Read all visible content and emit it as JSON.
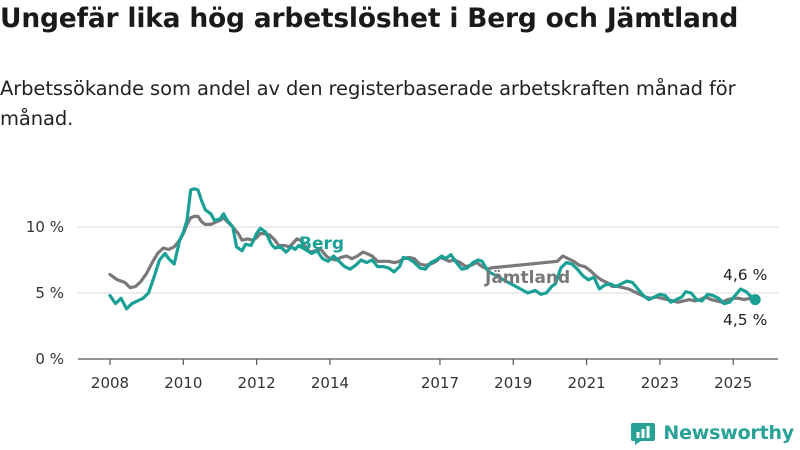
{
  "title": "Ungefär lika hög arbetslöshet i Berg och Jämtland",
  "subtitle": "Arbetssökande som andel av den registerbaserade arbetskraften månad för månad.",
  "brand": {
    "name": "Newsworthy",
    "logo_icon": "bar-chart-logo-icon"
  },
  "colors": {
    "berg": "#1aa094",
    "jamtland": "#7a787a",
    "grid": "#d9d9d9",
    "axis": "#555555"
  },
  "chart_data": {
    "type": "line",
    "title": "Ungefär lika hög arbetslöshet i Berg och Jämtland",
    "subtitle": "Arbetssökande som andel av den registerbaserade arbetskraften månad för månad.",
    "y_unit": "%",
    "ylim": [
      0,
      13.5
    ],
    "y_ticks": [
      {
        "value": 0,
        "label": "0 %"
      },
      {
        "value": 5,
        "label": "5 %"
      },
      {
        "value": 10,
        "label": "10 %"
      }
    ],
    "xlim": [
      2007.5,
      2026
    ],
    "x_ticks": [
      {
        "value": 2008,
        "label": "2008"
      },
      {
        "value": 2010,
        "label": "2010"
      },
      {
        "value": 2012,
        "label": "2012"
      },
      {
        "value": 2014,
        "label": "2014"
      },
      {
        "value": 2017,
        "label": "2017"
      },
      {
        "value": 2019,
        "label": "2019"
      },
      {
        "value": 2021,
        "label": "2021"
      },
      {
        "value": 2023,
        "label": "2023"
      },
      {
        "value": 2025,
        "label": "2025"
      }
    ],
    "grid": true,
    "legend": "inline",
    "series": [
      {
        "name": "Jämtland",
        "label": "Jämtland",
        "end_label": "4,6 %",
        "points": [
          [
            2008.0,
            6.4
          ],
          [
            2008.2,
            6.0
          ],
          [
            2008.4,
            5.8
          ],
          [
            2008.55,
            5.4
          ],
          [
            2008.7,
            5.5
          ],
          [
            2008.85,
            5.9
          ],
          [
            2009.0,
            6.5
          ],
          [
            2009.15,
            7.3
          ],
          [
            2009.3,
            8.0
          ],
          [
            2009.45,
            8.4
          ],
          [
            2009.6,
            8.3
          ],
          [
            2009.75,
            8.5
          ],
          [
            2009.9,
            9.0
          ],
          [
            2010.0,
            9.5
          ],
          [
            2010.1,
            10.2
          ],
          [
            2010.2,
            10.7
          ],
          [
            2010.3,
            10.8
          ],
          [
            2010.4,
            10.8
          ],
          [
            2010.5,
            10.4
          ],
          [
            2010.6,
            10.2
          ],
          [
            2010.75,
            10.2
          ],
          [
            2010.9,
            10.4
          ],
          [
            2011.0,
            10.5
          ],
          [
            2011.1,
            10.7
          ],
          [
            2011.2,
            10.4
          ],
          [
            2011.35,
            10.0
          ],
          [
            2011.5,
            9.5
          ],
          [
            2011.6,
            9.0
          ],
          [
            2011.75,
            9.1
          ],
          [
            2011.9,
            9.0
          ],
          [
            2012.0,
            9.2
          ],
          [
            2012.1,
            9.5
          ],
          [
            2012.2,
            9.5
          ],
          [
            2012.35,
            9.4
          ],
          [
            2012.5,
            9.0
          ],
          [
            2012.6,
            8.6
          ],
          [
            2012.75,
            8.6
          ],
          [
            2012.9,
            8.5
          ],
          [
            2013.0,
            8.8
          ],
          [
            2013.1,
            9.1
          ],
          [
            2013.2,
            9.0
          ],
          [
            2013.45,
            8.1
          ],
          [
            2013.6,
            8.2
          ],
          [
            2013.75,
            8.3
          ],
          [
            2013.9,
            7.8
          ],
          [
            2014.0,
            7.6
          ],
          [
            2014.15,
            7.5
          ],
          [
            2014.3,
            7.7
          ],
          [
            2014.45,
            7.8
          ],
          [
            2014.6,
            7.6
          ],
          [
            2014.75,
            7.8
          ],
          [
            2014.9,
            8.1
          ],
          [
            2015.0,
            8.0
          ],
          [
            2015.15,
            7.8
          ],
          [
            2015.3,
            7.4
          ],
          [
            2015.45,
            7.4
          ],
          [
            2015.6,
            7.4
          ],
          [
            2015.75,
            7.3
          ],
          [
            2015.9,
            7.4
          ],
          [
            2016.0,
            7.6
          ],
          [
            2016.15,
            7.7
          ],
          [
            2016.3,
            7.6
          ],
          [
            2016.45,
            7.2
          ],
          [
            2016.6,
            7.1
          ],
          [
            2016.75,
            7.2
          ],
          [
            2016.9,
            7.4
          ],
          [
            2017.0,
            7.7
          ],
          [
            2017.1,
            7.6
          ],
          [
            2017.25,
            7.4
          ],
          [
            2017.4,
            7.5
          ],
          [
            2017.55,
            7.3
          ],
          [
            2017.7,
            7.0
          ],
          [
            2017.85,
            7.1
          ],
          [
            2018.0,
            7.3
          ],
          [
            2018.15,
            7.0
          ],
          [
            2018.3,
            6.8
          ],
          [
            2018.4,
            6.9
          ],
          [
            2020.2,
            7.4
          ],
          [
            2020.35,
            7.8
          ],
          [
            2020.5,
            7.6
          ],
          [
            2020.65,
            7.4
          ],
          [
            2020.8,
            7.1
          ],
          [
            2020.95,
            7.0
          ],
          [
            2021.1,
            6.7
          ],
          [
            2021.25,
            6.3
          ],
          [
            2021.4,
            6.0
          ],
          [
            2021.55,
            5.8
          ],
          [
            2021.7,
            5.5
          ],
          [
            2021.85,
            5.5
          ],
          [
            2022.0,
            5.4
          ],
          [
            2022.15,
            5.3
          ],
          [
            2022.3,
            5.1
          ],
          [
            2022.45,
            4.9
          ],
          [
            2022.6,
            4.7
          ],
          [
            2022.75,
            4.6
          ],
          [
            2022.9,
            4.7
          ],
          [
            2023.05,
            4.6
          ],
          [
            2023.2,
            4.5
          ],
          [
            2023.35,
            4.4
          ],
          [
            2023.5,
            4.3
          ],
          [
            2023.65,
            4.4
          ],
          [
            2023.8,
            4.5
          ],
          [
            2023.95,
            4.4
          ],
          [
            2024.1,
            4.5
          ],
          [
            2024.25,
            4.7
          ],
          [
            2024.4,
            4.5
          ],
          [
            2024.55,
            4.4
          ],
          [
            2024.7,
            4.3
          ],
          [
            2024.85,
            4.5
          ],
          [
            2025.0,
            4.6
          ],
          [
            2025.15,
            4.6
          ],
          [
            2025.3,
            4.5
          ],
          [
            2025.45,
            4.6
          ],
          [
            2025.55,
            4.6
          ]
        ]
      },
      {
        "name": "Berg",
        "label": "Berg",
        "end_label": "4,5 %",
        "points": [
          [
            2008.0,
            4.8
          ],
          [
            2008.15,
            4.2
          ],
          [
            2008.3,
            4.6
          ],
          [
            2008.45,
            3.8
          ],
          [
            2008.6,
            4.2
          ],
          [
            2008.75,
            4.4
          ],
          [
            2008.9,
            4.6
          ],
          [
            2009.05,
            5.0
          ],
          [
            2009.2,
            6.2
          ],
          [
            2009.35,
            7.5
          ],
          [
            2009.5,
            8.0
          ],
          [
            2009.6,
            7.6
          ],
          [
            2009.75,
            7.2
          ],
          [
            2009.9,
            9.0
          ],
          [
            2010.0,
            9.6
          ],
          [
            2010.1,
            10.5
          ],
          [
            2010.2,
            12.8
          ],
          [
            2010.3,
            12.9
          ],
          [
            2010.4,
            12.8
          ],
          [
            2010.5,
            12.0
          ],
          [
            2010.6,
            11.3
          ],
          [
            2010.75,
            11.0
          ],
          [
            2010.85,
            10.5
          ],
          [
            2011.0,
            10.6
          ],
          [
            2011.1,
            11.0
          ],
          [
            2011.2,
            10.5
          ],
          [
            2011.35,
            10.0
          ],
          [
            2011.45,
            8.5
          ],
          [
            2011.6,
            8.2
          ],
          [
            2011.7,
            8.7
          ],
          [
            2011.85,
            8.6
          ],
          [
            2012.0,
            9.5
          ],
          [
            2012.1,
            9.9
          ],
          [
            2012.25,
            9.6
          ],
          [
            2012.4,
            8.7
          ],
          [
            2012.5,
            8.4
          ],
          [
            2012.65,
            8.5
          ],
          [
            2012.8,
            8.1
          ],
          [
            2012.95,
            8.5
          ],
          [
            2013.05,
            8.3
          ],
          [
            2013.15,
            8.6
          ],
          [
            2013.5,
            8.0
          ],
          [
            2013.65,
            8.2
          ],
          [
            2013.8,
            7.6
          ],
          [
            2013.95,
            7.4
          ],
          [
            2014.1,
            7.8
          ],
          [
            2014.25,
            7.4
          ],
          [
            2014.4,
            7.0
          ],
          [
            2014.55,
            6.8
          ],
          [
            2014.7,
            7.1
          ],
          [
            2014.85,
            7.5
          ],
          [
            2015.0,
            7.3
          ],
          [
            2015.15,
            7.5
          ],
          [
            2015.3,
            7.0
          ],
          [
            2015.45,
            7.0
          ],
          [
            2015.6,
            6.9
          ],
          [
            2015.75,
            6.6
          ],
          [
            2015.9,
            7.0
          ],
          [
            2016.0,
            7.7
          ],
          [
            2016.15,
            7.6
          ],
          [
            2016.3,
            7.3
          ],
          [
            2016.45,
            6.9
          ],
          [
            2016.6,
            6.8
          ],
          [
            2016.75,
            7.3
          ],
          [
            2016.9,
            7.5
          ],
          [
            2017.05,
            7.8
          ],
          [
            2017.15,
            7.6
          ],
          [
            2017.3,
            7.9
          ],
          [
            2017.45,
            7.3
          ],
          [
            2017.6,
            6.8
          ],
          [
            2017.75,
            6.9
          ],
          [
            2017.9,
            7.3
          ],
          [
            2018.05,
            7.5
          ],
          [
            2018.15,
            7.4
          ],
          [
            2018.3,
            6.7
          ],
          [
            2018.4,
            6.5
          ],
          [
            2019.4,
            5.0
          ],
          [
            2019.6,
            5.2
          ],
          [
            2019.75,
            4.9
          ],
          [
            2019.9,
            5.0
          ],
          [
            2020.05,
            5.5
          ],
          [
            2020.15,
            5.7
          ],
          [
            2020.3,
            6.9
          ],
          [
            2020.45,
            7.3
          ],
          [
            2020.6,
            7.2
          ],
          [
            2020.75,
            6.8
          ],
          [
            2020.9,
            6.3
          ],
          [
            2021.05,
            6.0
          ],
          [
            2021.2,
            6.2
          ],
          [
            2021.35,
            5.3
          ],
          [
            2021.5,
            5.6
          ],
          [
            2021.65,
            5.7
          ],
          [
            2021.8,
            5.5
          ],
          [
            2021.95,
            5.7
          ],
          [
            2022.1,
            5.9
          ],
          [
            2022.25,
            5.8
          ],
          [
            2022.4,
            5.3
          ],
          [
            2022.55,
            4.8
          ],
          [
            2022.7,
            4.5
          ],
          [
            2022.85,
            4.7
          ],
          [
            2023.0,
            4.9
          ],
          [
            2023.15,
            4.8
          ],
          [
            2023.3,
            4.3
          ],
          [
            2023.45,
            4.5
          ],
          [
            2023.6,
            4.7
          ],
          [
            2023.7,
            5.1
          ],
          [
            2023.85,
            5.0
          ],
          [
            2024.0,
            4.5
          ],
          [
            2024.15,
            4.4
          ],
          [
            2024.3,
            4.9
          ],
          [
            2024.45,
            4.8
          ],
          [
            2024.6,
            4.6
          ],
          [
            2024.75,
            4.2
          ],
          [
            2024.9,
            4.3
          ],
          [
            2025.05,
            4.8
          ],
          [
            2025.2,
            5.3
          ],
          [
            2025.35,
            5.1
          ],
          [
            2025.5,
            4.7
          ],
          [
            2025.6,
            4.5
          ]
        ]
      }
    ]
  }
}
